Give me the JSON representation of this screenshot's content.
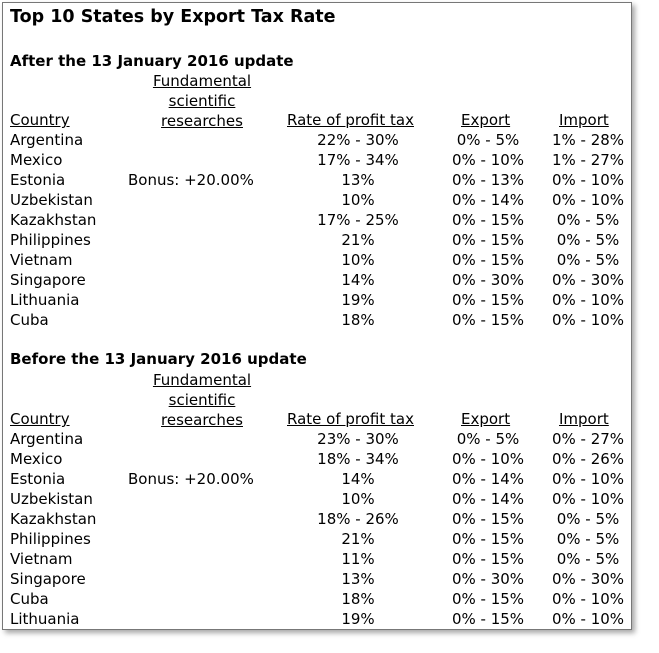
{
  "title": "Top 10 States by Export Tax Rate",
  "headers": {
    "country": "Country",
    "fundamental": [
      "Fundamental",
      "scientific",
      "researches"
    ],
    "profit": "Rate of profit tax",
    "export": "Export",
    "import": "Import"
  },
  "after": {
    "title": "After the 13 January 2016 update",
    "rows": [
      {
        "country": "Argentina",
        "bonus": "",
        "profit": "22% - 30%",
        "export": "0% - 5%",
        "import": "1% - 28%"
      },
      {
        "country": "Mexico",
        "bonus": "",
        "profit": "17% - 34%",
        "export": "0% - 10%",
        "import": "1% - 27%"
      },
      {
        "country": "Estonia",
        "bonus": "Bonus: +20.00%",
        "profit": "13%",
        "export": "0% - 13%",
        "import": "0% - 10%"
      },
      {
        "country": "Uzbekistan",
        "bonus": "",
        "profit": "10%",
        "export": "0% - 14%",
        "import": "0% - 10%"
      },
      {
        "country": "Kazakhstan",
        "bonus": "",
        "profit": "17% - 25%",
        "export": "0% - 15%",
        "import": "0% - 5%"
      },
      {
        "country": "Philippines",
        "bonus": "",
        "profit": "21%",
        "export": "0% - 15%",
        "import": "0% - 5%"
      },
      {
        "country": "Vietnam",
        "bonus": "",
        "profit": "10%",
        "export": "0% - 15%",
        "import": "0% - 5%"
      },
      {
        "country": "Singapore",
        "bonus": "",
        "profit": "14%",
        "export": "0% - 30%",
        "import": "0% - 30%"
      },
      {
        "country": "Lithuania",
        "bonus": "",
        "profit": "19%",
        "export": "0% - 15%",
        "import": "0% - 10%"
      },
      {
        "country": "Cuba",
        "bonus": "",
        "profit": "18%",
        "export": "0% - 15%",
        "import": "0% - 10%"
      }
    ]
  },
  "before": {
    "title": "Before the 13 January 2016 update",
    "rows": [
      {
        "country": "Argentina",
        "bonus": "",
        "profit": "23% - 30%",
        "export": "0% - 5%",
        "import": "0% - 27%"
      },
      {
        "country": "Mexico",
        "bonus": "",
        "profit": "18% - 34%",
        "export": "0% - 10%",
        "import": "0% - 26%"
      },
      {
        "country": "Estonia",
        "bonus": "Bonus: +20.00%",
        "profit": "14%",
        "export": "0% - 14%",
        "import": "0% - 10%"
      },
      {
        "country": "Uzbekistan",
        "bonus": "",
        "profit": "10%",
        "export": "0% - 14%",
        "import": "0% - 10%"
      },
      {
        "country": "Kazakhstan",
        "bonus": "",
        "profit": "18% - 26%",
        "export": "0% - 15%",
        "import": "0% - 5%"
      },
      {
        "country": "Philippines",
        "bonus": "",
        "profit": "21%",
        "export": "0% - 15%",
        "import": "0% - 5%"
      },
      {
        "country": "Vietnam",
        "bonus": "",
        "profit": "11%",
        "export": "0% - 15%",
        "import": "0% - 5%"
      },
      {
        "country": "Singapore",
        "bonus": "",
        "profit": "13%",
        "export": "0% - 30%",
        "import": "0% - 30%"
      },
      {
        "country": "Cuba",
        "bonus": "",
        "profit": "18%",
        "export": "0% - 15%",
        "import": "0% - 10%"
      },
      {
        "country": "Lithuania",
        "bonus": "",
        "profit": "19%",
        "export": "0% - 15%",
        "import": "0% - 10%"
      }
    ]
  }
}
